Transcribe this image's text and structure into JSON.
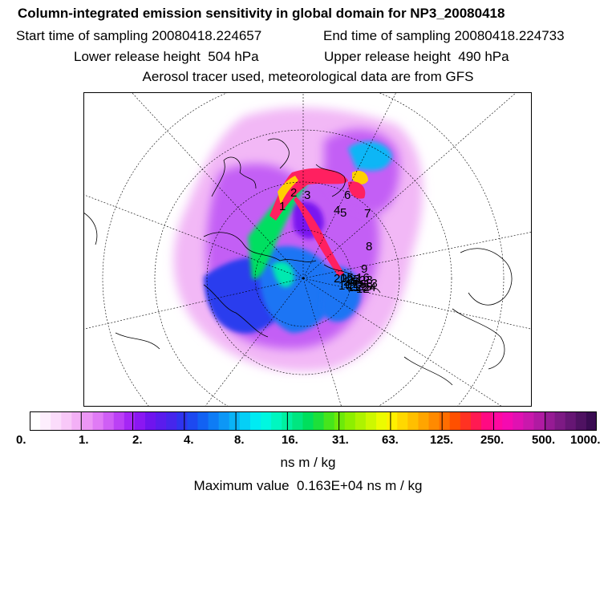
{
  "header": {
    "title": "Column-integrated emission sensitivity in global domain for NP3_20080418",
    "start_time": "Start time of sampling 20080418.224657",
    "end_time": "End time of sampling 20080418.224733",
    "lower_release": "Lower release height  504 hPa",
    "upper_release": "Upper release height  490 hPa",
    "tracer_note": "Aerosol tracer used, meteorological data are from GFS"
  },
  "map": {
    "projection": "polar stereographic",
    "trajectory_labels": [
      "1",
      "2",
      "3",
      "4",
      "5",
      "6",
      "7",
      "8",
      "9",
      "10",
      "11",
      "12",
      "13",
      "14",
      "15",
      "16",
      "17",
      "18",
      "19",
      "20",
      "21",
      "22",
      "23",
      "24",
      "25"
    ]
  },
  "colorbar": {
    "ticks": [
      "0.",
      "1.",
      "2.",
      "4.",
      "8.",
      "16.",
      "31.",
      "63.",
      "125.",
      "250.",
      "500.",
      "1000."
    ],
    "colors": [
      "#ffffff",
      "#fdeefd",
      "#fbdcfb",
      "#f8c8f8",
      "#f3b0f6",
      "#ec96f5",
      "#e07bf5",
      "#cf5ef5",
      "#bb40f5",
      "#a526f5",
      "#8a17f2",
      "#6f14ee",
      "#5a1ced",
      "#4626ec",
      "#2f34ee",
      "#1d49f0",
      "#1262f3",
      "#0e7cf5",
      "#0d97f6",
      "#0ab3f6",
      "#05cff6",
      "#00ebf3",
      "#00f7e0",
      "#00f7c0",
      "#00f0a0",
      "#00e680",
      "#00df5c",
      "#1de03a",
      "#46e51c",
      "#6cea0a",
      "#8def00",
      "#aef300",
      "#cdf800",
      "#ecfb00",
      "#fff000",
      "#ffd800",
      "#ffbf00",
      "#ffa500",
      "#ff8a00",
      "#ff6d00",
      "#ff5000",
      "#ff3222",
      "#ff1a52",
      "#ff0a82",
      "#ff08a0",
      "#f50ab0",
      "#e011b2",
      "#c918ac",
      "#b01aa2",
      "#961b94",
      "#7d1a84",
      "#661674",
      "#4f1262",
      "#3a0c52"
    ],
    "units": "ns m / kg"
  },
  "max_value": "Maximum value  0.163E+04 ns m / kg"
}
